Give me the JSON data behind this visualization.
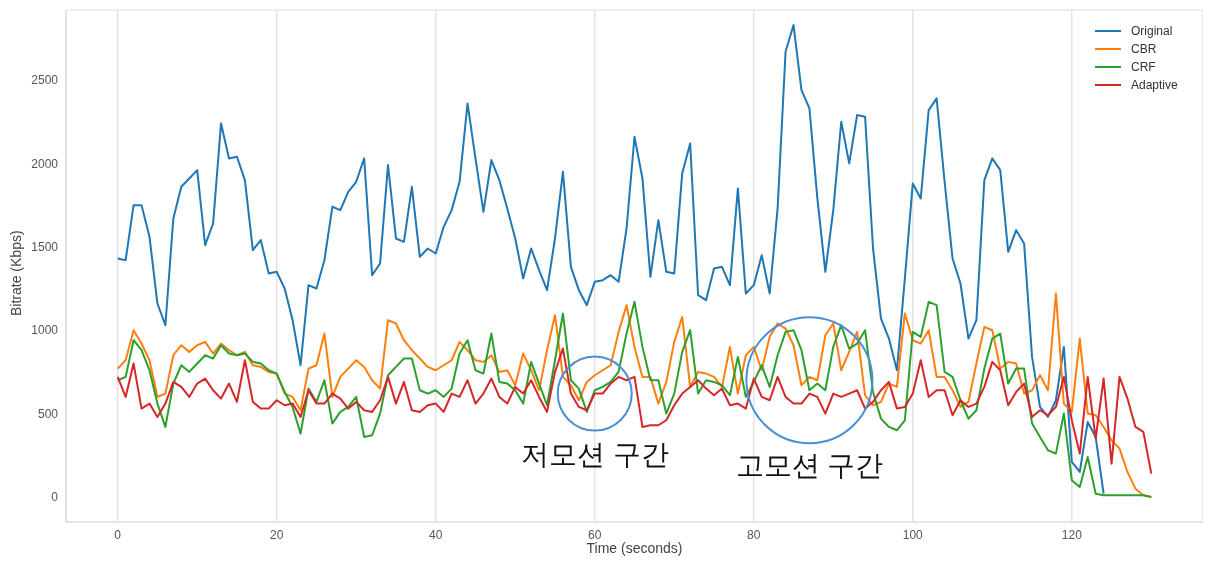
{
  "chart_data": {
    "type": "line",
    "xlabel": "Time (seconds)",
    "ylabel": "Bitrate (Kbps)",
    "x": [
      0,
      1,
      2,
      3,
      4,
      5,
      6,
      7,
      8,
      9,
      10,
      11,
      12,
      13,
      14,
      15,
      16,
      17,
      18,
      19,
      20,
      21,
      22,
      23,
      24,
      25,
      26,
      27,
      28,
      29,
      30,
      31,
      32,
      33,
      34,
      35,
      36,
      37,
      38,
      39,
      40,
      41,
      42,
      43,
      44,
      45,
      46,
      47,
      48,
      49,
      50,
      51,
      52,
      53,
      54,
      55,
      56,
      57,
      58,
      59,
      60,
      61,
      62,
      63,
      64,
      65,
      66,
      67,
      68,
      69,
      70,
      71,
      72,
      73,
      74,
      75,
      76,
      77,
      78,
      79,
      80,
      81,
      82,
      83,
      84,
      85,
      86,
      87,
      88,
      89,
      90,
      91,
      92,
      93,
      94,
      95,
      96,
      97,
      98,
      99,
      100,
      101,
      102,
      103,
      104,
      105,
      106,
      107,
      108,
      109,
      110,
      111,
      112,
      113,
      114,
      115,
      116,
      117,
      118,
      119,
      120,
      121,
      122,
      123,
      124,
      125,
      126,
      127,
      128,
      129,
      130
    ],
    "series": [
      {
        "name": "Original",
        "color": "#1f77b4",
        "values": [
          1430,
          1420,
          1750,
          1750,
          1560,
          1160,
          1030,
          1670,
          1860,
          1910,
          1960,
          1510,
          1640,
          2240,
          2030,
          2040,
          1900,
          1480,
          1540,
          1340,
          1350,
          1250,
          1060,
          790,
          1270,
          1250,
          1420,
          1740,
          1720,
          1830,
          1890,
          2030,
          1330,
          1400,
          1990,
          1550,
          1530,
          1860,
          1440,
          1490,
          1460,
          1620,
          1720,
          1890,
          2360,
          2030,
          1710,
          2020,
          1900,
          1730,
          1550,
          1310,
          1490,
          1360,
          1240,
          1550,
          1950,
          1380,
          1240,
          1150,
          1290,
          1300,
          1330,
          1290,
          1610,
          2160,
          1910,
          1320,
          1660,
          1350,
          1340,
          1940,
          2120,
          1210,
          1180,
          1370,
          1380,
          1270,
          1850,
          1220,
          1270,
          1450,
          1220,
          1730,
          2670,
          2830,
          2440,
          2330,
          1790,
          1350,
          1720,
          2250,
          2000,
          2290,
          2280,
          1490,
          1070,
          950,
          760,
          1310,
          1880,
          1790,
          2320,
          2390,
          1890,
          1430,
          1280,
          950,
          1060,
          1900,
          2030,
          1960,
          1470,
          1600,
          1520,
          840,
          540,
          480,
          580,
          900,
          210,
          150,
          450,
          360,
          20,
          null,
          null,
          null,
          null,
          null,
          null
        ]
      },
      {
        "name": "CBR",
        "color": "#ff7f0e",
        "values": [
          770,
          820,
          1000,
          920,
          820,
          600,
          620,
          850,
          910,
          870,
          910,
          930,
          860,
          920,
          880,
          850,
          870,
          790,
          780,
          750,
          740,
          620,
          600,
          520,
          770,
          790,
          980,
          600,
          720,
          770,
          820,
          780,
          700,
          650,
          1060,
          1040,
          940,
          880,
          830,
          780,
          760,
          790,
          820,
          930,
          880,
          820,
          810,
          850,
          750,
          760,
          670,
          860,
          760,
          640,
          880,
          1090,
          720,
          670,
          580,
          690,
          730,
          760,
          790,
          990,
          1150,
          900,
          720,
          720,
          560,
          690,
          930,
          1080,
          660,
          750,
          740,
          720,
          660,
          900,
          620,
          850,
          900,
          760,
          960,
          1040,
          1010,
          910,
          670,
          720,
          700,
          970,
          1040,
          760,
          870,
          990,
          610,
          550,
          570,
          680,
          660,
          1100,
          940,
          920,
          1000,
          720,
          720,
          640,
          540,
          570,
          800,
          1020,
          1000,
          770,
          810,
          800,
          620,
          640,
          730,
          640,
          1220,
          560,
          510,
          950,
          500,
          490,
          420,
          340,
          290,
          150,
          50,
          10,
          0
        ]
      },
      {
        "name": "CRF",
        "color": "#2ca02c",
        "values": [
          700,
          720,
          940,
          880,
          760,
          560,
          420,
          680,
          790,
          750,
          800,
          850,
          830,
          910,
          860,
          850,
          860,
          810,
          800,
          760,
          740,
          630,
          540,
          380,
          650,
          570,
          700,
          440,
          510,
          540,
          600,
          360,
          370,
          500,
          730,
          780,
          830,
          830,
          640,
          620,
          640,
          600,
          650,
          860,
          940,
          760,
          740,
          980,
          690,
          680,
          640,
          560,
          810,
          680,
          550,
          820,
          1100,
          700,
          650,
          510,
          640,
          660,
          690,
          750,
          980,
          1170,
          900,
          700,
          700,
          500,
          620,
          870,
          1000,
          620,
          700,
          690,
          670,
          610,
          840,
          600,
          690,
          790,
          660,
          850,
          990,
          1000,
          880,
          640,
          680,
          640,
          900,
          1030,
          890,
          920,
          1000,
          630,
          470,
          420,
          400,
          460,
          990,
          960,
          1170,
          1150,
          750,
          720,
          580,
          470,
          520,
          770,
          950,
          980,
          680,
          770,
          770,
          440,
          360,
          280,
          260,
          500,
          100,
          60,
          240,
          20,
          10,
          10,
          10,
          10,
          10,
          10,
          0
        ]
      },
      {
        "name": "Adaptive",
        "color": "#d62728",
        "values": [
          720,
          600,
          800,
          530,
          560,
          480,
          560,
          690,
          660,
          600,
          680,
          710,
          640,
          590,
          680,
          570,
          820,
          570,
          530,
          530,
          580,
          550,
          560,
          480,
          640,
          560,
          560,
          620,
          590,
          530,
          570,
          520,
          510,
          580,
          720,
          560,
          690,
          520,
          510,
          550,
          560,
          510,
          620,
          600,
          700,
          560,
          620,
          710,
          600,
          560,
          660,
          620,
          700,
          600,
          510,
          750,
          890,
          620,
          540,
          520,
          620,
          620,
          680,
          720,
          700,
          720,
          420,
          430,
          430,
          460,
          550,
          620,
          660,
          700,
          650,
          610,
          650,
          550,
          560,
          530,
          710,
          600,
          580,
          720,
          600,
          560,
          560,
          620,
          600,
          500,
          620,
          600,
          620,
          640,
          530,
          570,
          640,
          690,
          530,
          540,
          620,
          820,
          600,
          640,
          640,
          490,
          580,
          540,
          560,
          660,
          810,
          760,
          550,
          630,
          680,
          480,
          520,
          490,
          540,
          720,
          460,
          260,
          720,
          350,
          710,
          200,
          720,
          590,
          420,
          390,
          140
        ]
      }
    ],
    "xlim": [
      -6.5,
      136.5
    ],
    "xticks": [
      0,
      20,
      40,
      60,
      80,
      100,
      120
    ],
    "ylim": [
      -150,
      2920
    ],
    "yticks": [
      0,
      500,
      1000,
      1500,
      2000,
      2500
    ],
    "grid": true,
    "legend": "top right",
    "annotations": [
      {
        "text": "저모션 구간",
        "x": 60,
        "y": 620
      },
      {
        "text": "고모션 구간",
        "x": 87,
        "y": 700
      }
    ]
  }
}
